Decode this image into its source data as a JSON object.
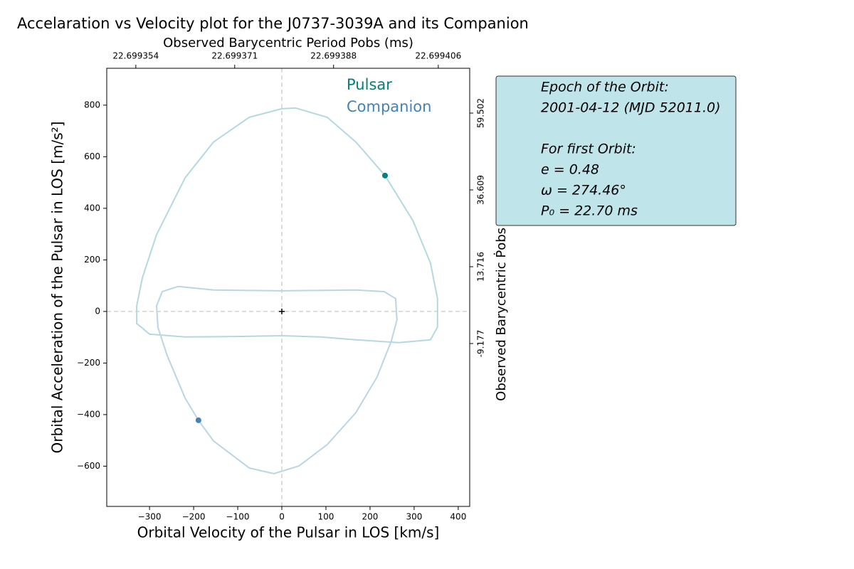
{
  "chart_data": {
    "type": "line",
    "title": "Accelaration vs Velocity plot for the J0737-3039A and its Companion",
    "x_label": "Orbital Velocity of the Pulsar in LOS [km/s]",
    "y_label": "Orbital Acceleration of the Pulsar in LOS [m/s²]",
    "x2_label": "Observed Barycentric Period Pobs (ms)",
    "y2_label": "Observed Barycentric Ṗobs [x 10⁻²]",
    "xlim": [
      -397,
      426
    ],
    "ylim": [
      -756,
      943
    ],
    "xticks": [
      {
        "value": -300,
        "label": "−300"
      },
      {
        "value": -200,
        "label": "−200"
      },
      {
        "value": -100,
        "label": "−100"
      },
      0,
      100,
      200,
      300,
      400
    ],
    "yticks": [
      {
        "value": -600,
        "label": "−600"
      },
      {
        "value": -400,
        "label": "−400"
      },
      {
        "value": -200,
        "label": "−200"
      },
      0,
      200,
      400,
      600,
      800
    ],
    "x2lim": [
      22.699349,
      22.6994114
    ],
    "x2ticks": [
      22.699354,
      22.699371,
      22.699388,
      22.699406
    ],
    "y2lim": [
      -57.72,
      72.86
    ],
    "y2ticks": [
      59.502,
      36.609,
      13.716,
      -9.177
    ],
    "crosshair": true,
    "series": [
      {
        "name": "Pulsar",
        "color": "#008080",
        "line_color": "#b3d9de",
        "x": [
          0,
          31,
          103,
          168,
          234,
          297,
          337,
          353,
          353,
          337,
          265,
          168,
          87,
          0,
          -106,
          -219,
          -300,
          -329,
          -329,
          -316,
          -284,
          -219,
          -155,
          -74
        ],
        "values": [
          786,
          789,
          753,
          657,
          527,
          353,
          188,
          50,
          -61,
          -110,
          -121,
          -110,
          -99,
          -94,
          -97,
          -99,
          -88,
          -47,
          22,
          132,
          298,
          519,
          657,
          753
        ],
        "current": {
          "x": 234,
          "y": 527
        }
      },
      {
        "name": "Companion",
        "color": "#4682b4",
        "line_color": "#bcd5e3",
        "x": [
          -235,
          -155,
          0,
          168,
          232,
          258,
          261,
          248,
          216,
          168,
          103,
          39,
          -18,
          -74,
          -155,
          -189,
          -219,
          -260,
          -281,
          -284,
          -271
        ],
        "values": [
          97,
          83,
          80,
          83,
          77,
          50,
          -33,
          -116,
          -254,
          -392,
          -516,
          -599,
          -629,
          -607,
          -502,
          -422,
          -337,
          -171,
          -61,
          22,
          77
        ],
        "current": {
          "x": -189,
          "y": -422
        }
      }
    ],
    "annotation": [
      "Epoch of the Orbit:",
      "2001-04-12 (MJD 52011.0)",
      "For first Orbit:",
      "e = 0.48",
      "ω = 274.46°",
      "P₀ = 22.70 ms"
    ]
  }
}
